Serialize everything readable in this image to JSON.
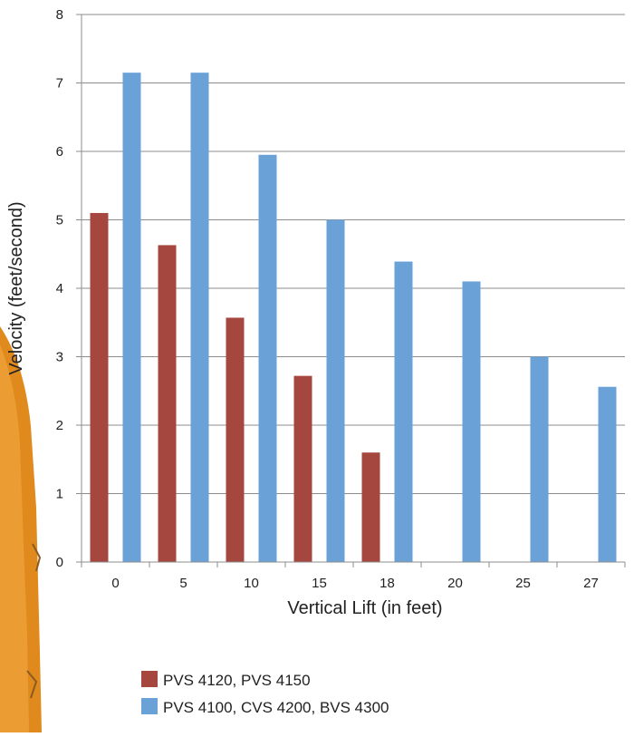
{
  "chart_data": {
    "type": "bar",
    "xlabel": "Vertical Lift (in feet)",
    "ylabel": "Velocity (feet/second)",
    "categories": [
      "0",
      "5",
      "10",
      "15",
      "18",
      "20",
      "25",
      "27"
    ],
    "ylim": [
      0,
      8
    ],
    "yticks": [
      "0",
      "1",
      "2",
      "3",
      "4",
      "5",
      "6",
      "7",
      "8"
    ],
    "grid": true,
    "legend_position": "bottom",
    "series": [
      {
        "name": "PVS 4120, PVS 4150",
        "color": "#a5473f",
        "values": [
          5.1,
          4.63,
          3.57,
          2.72,
          1.6,
          null,
          null,
          null
        ]
      },
      {
        "name": "PVS 4100, CVS 4200, BVS 4300",
        "color": "#6aa2d8",
        "values": [
          7.15,
          7.15,
          5.95,
          5.0,
          4.39,
          4.1,
          3.0,
          2.56
        ]
      }
    ]
  }
}
